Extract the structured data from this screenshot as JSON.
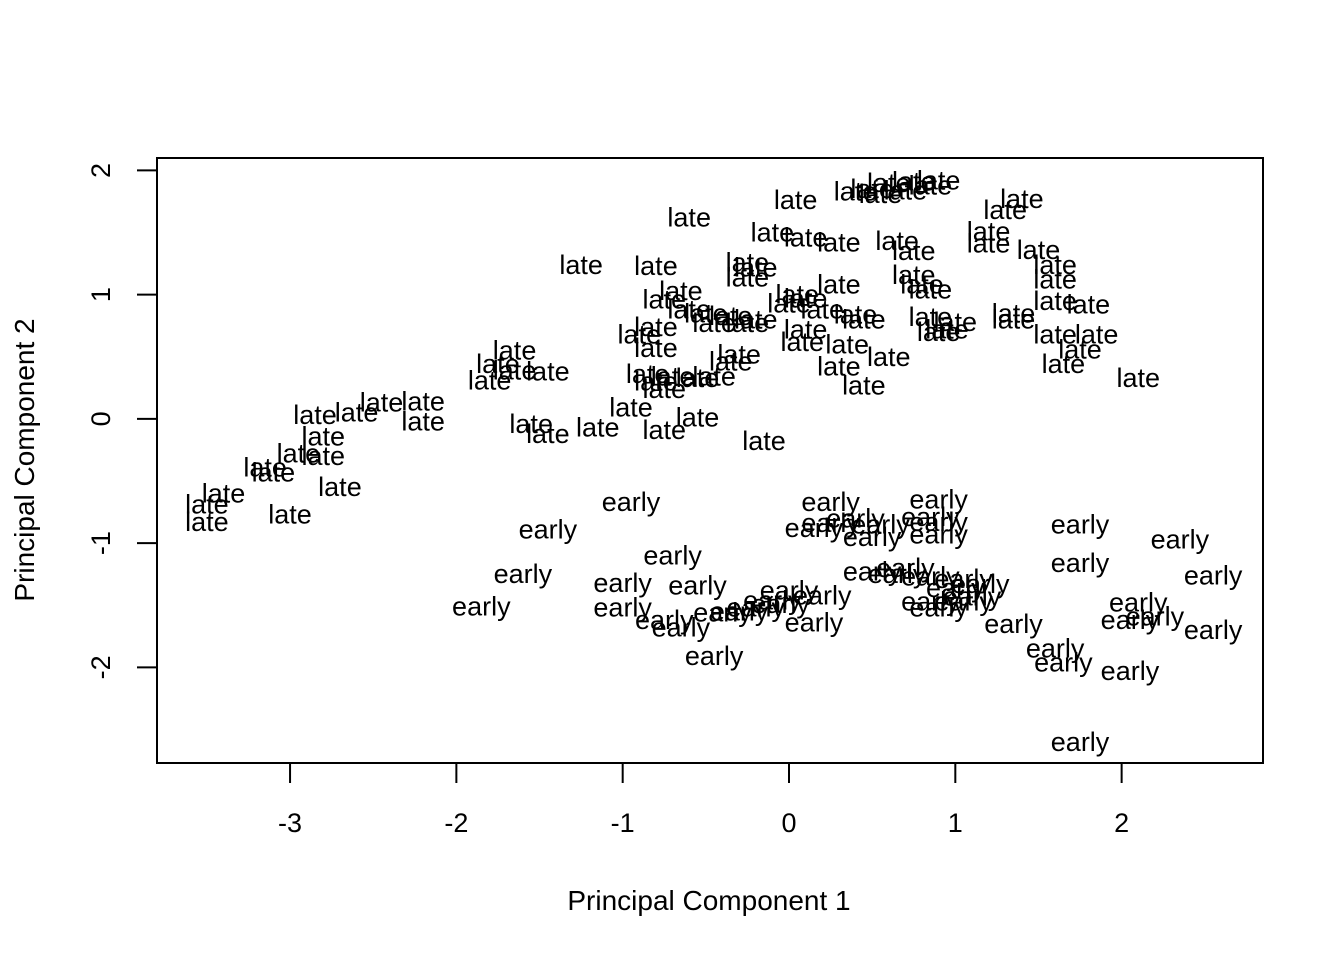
{
  "chart_data": {
    "type": "scatter",
    "title": "",
    "xlabel": "Principal Component 1",
    "ylabel": "Principal Component 2",
    "xlim": [
      -3.8,
      2.85
    ],
    "ylim": [
      -2.77,
      2.1
    ],
    "xticks": [
      -3,
      -2,
      -1,
      0,
      1,
      2
    ],
    "yticks": [
      -2,
      -1,
      0,
      1,
      2
    ],
    "xtick_labels": [
      "-3",
      "-2",
      "-1",
      "0",
      "1",
      "2"
    ],
    "ytick_labels": [
      "-2",
      "-1",
      "0",
      "1",
      "2"
    ],
    "grid": false,
    "legend": "none",
    "marker": "text labels",
    "series": [
      {
        "name": "late",
        "points": [
          [
            0.6,
            1.9
          ],
          [
            0.75,
            1.91
          ],
          [
            0.9,
            1.92
          ],
          [
            0.5,
            1.85
          ],
          [
            0.85,
            1.88
          ],
          [
            0.7,
            1.84
          ],
          [
            0.4,
            1.83
          ],
          [
            0.55,
            1.81
          ],
          [
            1.4,
            1.77
          ],
          [
            1.3,
            1.68
          ],
          [
            0.04,
            1.76
          ],
          [
            -0.6,
            1.62
          ],
          [
            -0.1,
            1.5
          ],
          [
            0.1,
            1.46
          ],
          [
            0.3,
            1.42
          ],
          [
            0.65,
            1.43
          ],
          [
            0.75,
            1.35
          ],
          [
            1.2,
            1.51
          ],
          [
            1.2,
            1.41
          ],
          [
            1.5,
            1.36
          ],
          [
            1.6,
            1.24
          ],
          [
            1.6,
            1.12
          ],
          [
            -1.25,
            1.24
          ],
          [
            -0.8,
            1.23
          ],
          [
            -0.25,
            1.26
          ],
          [
            -0.2,
            1.22
          ],
          [
            -0.25,
            1.14
          ],
          [
            0.75,
            1.16
          ],
          [
            0.8,
            1.08
          ],
          [
            0.85,
            1.04
          ],
          [
            0.3,
            1.08
          ],
          [
            -0.65,
            1.03
          ],
          [
            -0.75,
            0.96
          ],
          [
            0.05,
            1.0
          ],
          [
            0.1,
            0.97
          ],
          [
            1.6,
            0.95
          ],
          [
            1.8,
            0.92
          ],
          [
            1.35,
            0.85
          ],
          [
            1.35,
            0.8
          ],
          [
            0.0,
            0.93
          ],
          [
            0.2,
            0.88
          ],
          [
            0.4,
            0.84
          ],
          [
            0.45,
            0.8
          ],
          [
            0.85,
            0.82
          ],
          [
            1.0,
            0.78
          ],
          [
            0.95,
            0.72
          ],
          [
            0.9,
            0.7
          ],
          [
            -0.6,
            0.88
          ],
          [
            -0.5,
            0.85
          ],
          [
            -0.35,
            0.83
          ],
          [
            -0.2,
            0.8
          ],
          [
            -0.45,
            0.77
          ],
          [
            -0.25,
            0.77
          ],
          [
            -0.8,
            0.74
          ],
          [
            -0.9,
            0.68
          ],
          [
            0.1,
            0.72
          ],
          [
            0.08,
            0.62
          ],
          [
            0.35,
            0.6
          ],
          [
            1.6,
            0.68
          ],
          [
            1.85,
            0.68
          ],
          [
            1.75,
            0.56
          ],
          [
            -0.8,
            0.57
          ],
          [
            -0.3,
            0.52
          ],
          [
            0.6,
            0.5
          ],
          [
            -0.35,
            0.46
          ],
          [
            0.3,
            0.42
          ],
          [
            1.65,
            0.44
          ],
          [
            2.1,
            0.33
          ],
          [
            -1.65,
            0.55
          ],
          [
            -1.75,
            0.44
          ],
          [
            -1.65,
            0.39
          ],
          [
            -1.45,
            0.38
          ],
          [
            -1.8,
            0.31
          ],
          [
            -0.85,
            0.36
          ],
          [
            -0.7,
            0.34
          ],
          [
            -0.55,
            0.33
          ],
          [
            -0.45,
            0.34
          ],
          [
            -0.8,
            0.3
          ],
          [
            -0.75,
            0.24
          ],
          [
            0.45,
            0.27
          ],
          [
            -2.45,
            0.13
          ],
          [
            -2.2,
            0.14
          ],
          [
            -2.85,
            0.03
          ],
          [
            -2.6,
            0.05
          ],
          [
            -2.2,
            -0.02
          ],
          [
            -1.55,
            -0.04
          ],
          [
            -0.95,
            0.09
          ],
          [
            -0.55,
            0.01
          ],
          [
            -1.45,
            -0.12
          ],
          [
            -1.15,
            -0.07
          ],
          [
            -0.75,
            -0.09
          ],
          [
            -0.15,
            -0.18
          ],
          [
            -2.8,
            -0.14
          ],
          [
            -2.95,
            -0.28
          ],
          [
            -2.8,
            -0.3
          ],
          [
            -3.15,
            -0.39
          ],
          [
            -3.1,
            -0.43
          ],
          [
            -2.7,
            -0.55
          ],
          [
            -3.4,
            -0.6
          ],
          [
            -3.5,
            -0.69
          ],
          [
            -3.0,
            -0.77
          ],
          [
            -3.5,
            -0.83
          ]
        ]
      },
      {
        "name": "early",
        "points": [
          [
            -0.95,
            -0.67
          ],
          [
            0.25,
            -0.67
          ],
          [
            0.9,
            -0.65
          ],
          [
            -1.45,
            -0.89
          ],
          [
            0.4,
            -0.8
          ],
          [
            0.25,
            -0.84
          ],
          [
            0.85,
            -0.79
          ],
          [
            0.9,
            -0.83
          ],
          [
            0.15,
            -0.88
          ],
          [
            0.55,
            -0.85
          ],
          [
            0.5,
            -0.95
          ],
          [
            0.9,
            -0.93
          ],
          [
            1.75,
            -0.85
          ],
          [
            2.35,
            -0.97
          ],
          [
            1.75,
            -1.16
          ],
          [
            -0.7,
            -1.1
          ],
          [
            0.5,
            -1.23
          ],
          [
            0.7,
            -1.2
          ],
          [
            0.65,
            -1.25
          ],
          [
            0.85,
            -1.27
          ],
          [
            1.05,
            -1.29
          ],
          [
            1.15,
            -1.33
          ],
          [
            1.0,
            -1.36
          ],
          [
            2.55,
            -1.26
          ],
          [
            -1.6,
            -1.25
          ],
          [
            -1.0,
            -1.32
          ],
          [
            -0.55,
            -1.34
          ],
          [
            0.0,
            -1.38
          ],
          [
            0.2,
            -1.42
          ],
          [
            -0.1,
            -1.46
          ],
          [
            -0.05,
            -1.49
          ],
          [
            -0.2,
            -1.52
          ],
          [
            -0.3,
            -1.55
          ],
          [
            0.85,
            -1.47
          ],
          [
            0.9,
            -1.52
          ],
          [
            1.1,
            -1.43
          ],
          [
            1.05,
            -1.47
          ],
          [
            -1.85,
            -1.51
          ],
          [
            -1.0,
            -1.52
          ],
          [
            -0.4,
            -1.56
          ],
          [
            2.1,
            -1.48
          ],
          [
            2.2,
            -1.59
          ],
          [
            -0.75,
            -1.62
          ],
          [
            -0.65,
            -1.68
          ],
          [
            0.15,
            -1.64
          ],
          [
            1.35,
            -1.65
          ],
          [
            2.05,
            -1.62
          ],
          [
            2.55,
            -1.7
          ],
          [
            1.6,
            -1.85
          ],
          [
            -0.45,
            -1.91
          ],
          [
            1.65,
            -1.96
          ],
          [
            2.05,
            -2.03
          ],
          [
            1.75,
            -2.6
          ]
        ]
      }
    ]
  }
}
